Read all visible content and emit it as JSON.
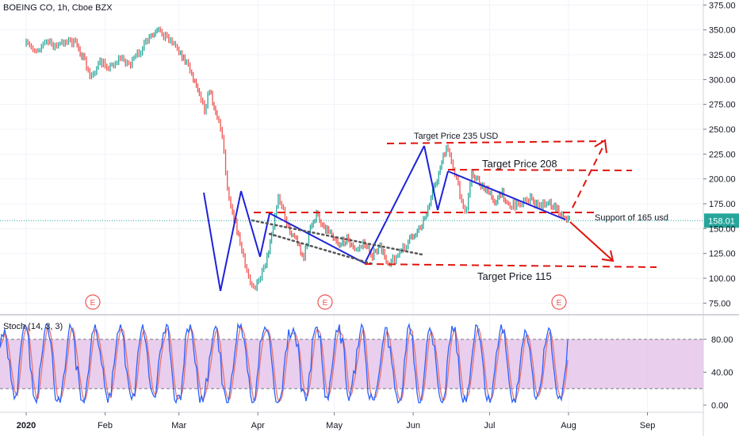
{
  "header": {
    "title": "BOEING CO, 1h, Cboe BZX"
  },
  "stoch": {
    "label": "Stoch (14, 3, 3)"
  },
  "colors": {
    "price_up": "#26a69a",
    "price_down": "#ef5350",
    "pattern_line": "#1e22d8",
    "target_line": "#e0140c",
    "trend_dots": "#555555",
    "stoch_band": "#e1bee7",
    "stoch_k": "#2962ff",
    "stoch_d": "#e57373",
    "last_price": "#26a69a",
    "earnings": "#ef5350"
  },
  "chart_data": [
    {
      "type": "line",
      "series_kind": "price",
      "x_ticks": [
        "2020",
        "Feb",
        "Mar",
        "Apr",
        "May",
        "Jun",
        "Jul",
        "Aug",
        "Sep"
      ],
      "y_ticks": [
        "375.00",
        "350.00",
        "325.00",
        "300.00",
        "275.00",
        "250.00",
        "225.00",
        "200.00",
        "175.00",
        "150.00",
        "125.00",
        "100.00",
        "75.00"
      ],
      "ylim": [
        70,
        378
      ],
      "last_price": {
        "value": 158.01,
        "label": "158.01"
      },
      "price_path": [
        [
          "2020-01-01",
          335
        ],
        [
          "2020-01-05",
          330
        ],
        [
          "2020-01-09",
          338
        ],
        [
          "2020-01-13",
          333
        ],
        [
          "2020-01-17",
          340
        ],
        [
          "2020-01-21",
          335
        ],
        [
          "2020-01-24",
          318
        ],
        [
          "2020-01-26",
          302
        ],
        [
          "2020-01-30",
          317
        ],
        [
          "2020-02-03",
          313
        ],
        [
          "2020-02-07",
          322
        ],
        [
          "2020-02-11",
          315
        ],
        [
          "2020-02-15",
          330
        ],
        [
          "2020-02-19",
          343
        ],
        [
          "2020-02-22",
          348
        ],
        [
          "2020-02-26",
          342
        ],
        [
          "2020-03-01",
          330
        ],
        [
          "2020-03-04",
          316
        ],
        [
          "2020-03-06",
          305
        ],
        [
          "2020-03-09",
          288
        ],
        [
          "2020-03-11",
          270
        ],
        [
          "2020-03-13",
          290
        ],
        [
          "2020-03-16",
          262
        ],
        [
          "2020-03-18",
          245
        ],
        [
          "2020-03-20",
          190
        ],
        [
          "2020-03-22",
          168
        ],
        [
          "2020-03-25",
          135
        ],
        [
          "2020-03-27",
          112
        ],
        [
          "2020-03-29",
          98
        ],
        [
          "2020-03-31",
          90
        ],
        [
          "2020-04-02",
          101
        ],
        [
          "2020-04-04",
          112
        ],
        [
          "2020-04-07",
          150
        ],
        [
          "2020-04-09",
          185
        ],
        [
          "2020-04-11",
          168
        ],
        [
          "2020-04-13",
          150
        ],
        [
          "2020-04-16",
          140
        ],
        [
          "2020-04-19",
          120
        ],
        [
          "2020-04-21",
          145
        ],
        [
          "2020-04-24",
          164
        ],
        [
          "2020-04-27",
          152
        ],
        [
          "2020-04-30",
          146
        ],
        [
          "2020-05-03",
          134
        ],
        [
          "2020-05-06",
          140
        ],
        [
          "2020-05-09",
          128
        ],
        [
          "2020-05-13",
          135
        ],
        [
          "2020-05-16",
          123
        ],
        [
          "2020-05-19",
          131
        ],
        [
          "2020-05-22",
          116
        ],
        [
          "2020-05-26",
          123
        ],
        [
          "2020-05-30",
          136
        ],
        [
          "2020-06-02",
          146
        ],
        [
          "2020-06-05",
          158
        ],
        [
          "2020-06-08",
          180
        ],
        [
          "2020-06-11",
          205
        ],
        [
          "2020-06-14",
          232
        ],
        [
          "2020-06-16",
          215
        ],
        [
          "2020-06-18",
          200
        ],
        [
          "2020-06-20",
          175
        ],
        [
          "2020-06-22",
          168
        ],
        [
          "2020-06-24",
          208
        ],
        [
          "2020-06-27",
          196
        ],
        [
          "2020-06-30",
          188
        ],
        [
          "2020-07-03",
          178
        ],
        [
          "2020-07-06",
          185
        ],
        [
          "2020-07-09",
          172
        ],
        [
          "2020-07-13",
          176
        ],
        [
          "2020-07-17",
          180
        ],
        [
          "2020-07-20",
          172
        ],
        [
          "2020-07-24",
          178
        ],
        [
          "2020-07-27",
          170
        ],
        [
          "2020-07-30",
          163
        ],
        [
          "2020-08-02",
          158
        ]
      ]
    },
    {
      "type": "line",
      "series_kind": "stochastic",
      "y_ticks": [
        "80.00",
        "40.00",
        "0.00"
      ],
      "ylim": [
        -5,
        100
      ],
      "band": [
        20,
        80
      ],
      "legend": "none"
    }
  ],
  "annotations": {
    "target_235": "Target Price 235 USD",
    "target_208": "Target Price 208",
    "support_165": "Support of 165 usd",
    "target_115": "Target Price 115",
    "earnings_marker": "E"
  }
}
